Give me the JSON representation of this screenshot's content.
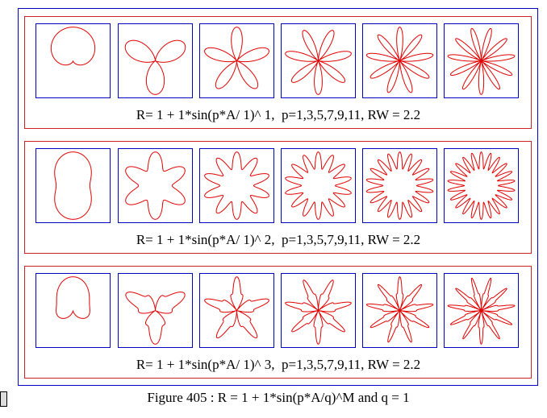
{
  "figure": {
    "rows": [
      {
        "caption": "R= 1 + 1*sin(p*A/ 1)^ 1,  p=1,3,5,7,9,11, RW = 2.2"
      },
      {
        "caption": "R= 1 + 1*sin(p*A/ 1)^ 2,  p=1,3,5,7,9,11, RW = 2.2"
      },
      {
        "caption": "R= 1 + 1*sin(p*A/ 1)^ 3,  p=1,3,5,7,9,11, RW = 2.2"
      }
    ],
    "caption": "Figure 405 : R = 1 + 1*sin(p*A/q)^M and q = 1"
  }
}
